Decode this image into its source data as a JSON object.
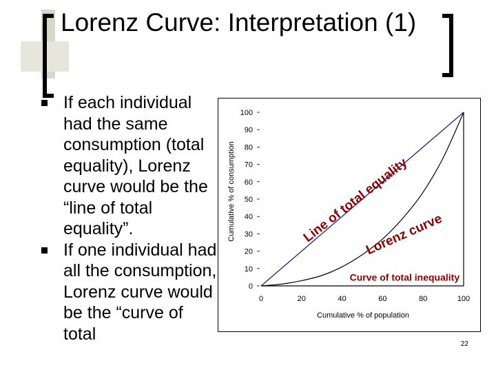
{
  "slide": {
    "title": "Lorenz Curve: Interpretation (1)",
    "bullets": [
      "If each individual had the same consumption (total equality), Lorenz curve would be the “line of total equality”.",
      "If one individual had all the consumption, Lorenz curve would be the “curve of total"
    ],
    "page_number": "22"
  },
  "chart_data": {
    "type": "line",
    "xlabel": "Cumulative % of population",
    "ylabel": "Cumulative % of consumption",
    "xlim": [
      0,
      100
    ],
    "ylim": [
      0,
      100
    ],
    "x_ticks": [
      "0",
      "20",
      "40",
      "60",
      "80",
      "100"
    ],
    "y_ticks": [
      "0",
      "10",
      "20",
      "30",
      "40",
      "50",
      "60",
      "70",
      "80",
      "90",
      "100"
    ],
    "series": [
      {
        "name": "Line of total equality",
        "x": [
          0,
          100
        ],
        "y": [
          0,
          100
        ],
        "color": "#2b2b9a"
      },
      {
        "name": "Lorenz curve",
        "x": [
          0,
          10,
          20,
          30,
          40,
          50,
          60,
          70,
          80,
          90,
          100
        ],
        "y": [
          0,
          1,
          3,
          6,
          11,
          18,
          27,
          39,
          54,
          74,
          100
        ],
        "color": "#000000"
      },
      {
        "name": "Curve of total inequality",
        "x": [
          0,
          100,
          100
        ],
        "y": [
          0,
          0,
          100
        ],
        "color": "#000000"
      }
    ],
    "annotations": {
      "equality": "Line of total equality",
      "lorenz": "Lorenz curve",
      "inequality": "Curve of total inequality"
    },
    "annotation_color": "#8b0000",
    "grid": false
  }
}
